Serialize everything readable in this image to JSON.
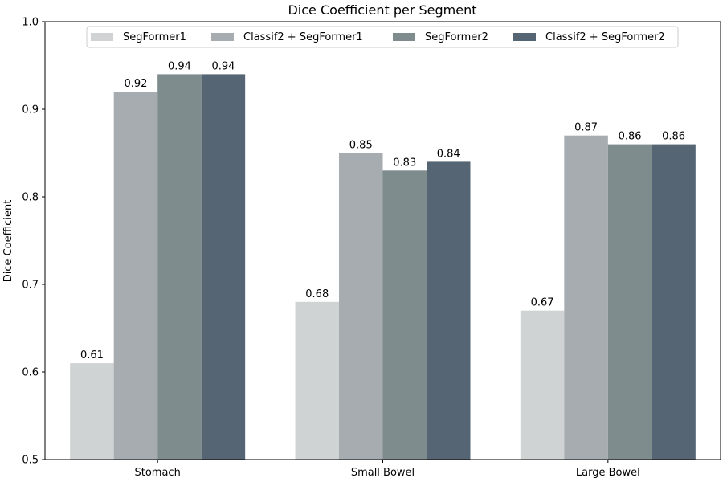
{
  "chart_data": {
    "type": "bar",
    "title": "Dice Coefficient per Segment",
    "xlabel": "",
    "ylabel": "Dice Coefficient",
    "ylim": [
      0.5,
      1.0
    ],
    "yticks": [
      "0.5",
      "0.6",
      "0.7",
      "0.8",
      "0.9",
      "1.0"
    ],
    "categories": [
      "Stomach",
      "Small Bowel",
      "Large Bowel"
    ],
    "series": [
      {
        "name": "SegFormer1",
        "values": [
          0.61,
          0.68,
          0.67
        ],
        "color": "#d0d3d4"
      },
      {
        "name": "Classif2 + SegFormer1",
        "values": [
          0.92,
          0.85,
          0.87
        ],
        "color": "#a6acaf"
      },
      {
        "name": "SegFormer2",
        "values": [
          0.94,
          0.83,
          0.86
        ],
        "color": "#7f8c8d"
      },
      {
        "name": "Classif2 + SegFormer2",
        "values": [
          0.94,
          0.84,
          0.86
        ],
        "color": "#566573"
      }
    ],
    "legend_position": "top",
    "grid": false
  }
}
